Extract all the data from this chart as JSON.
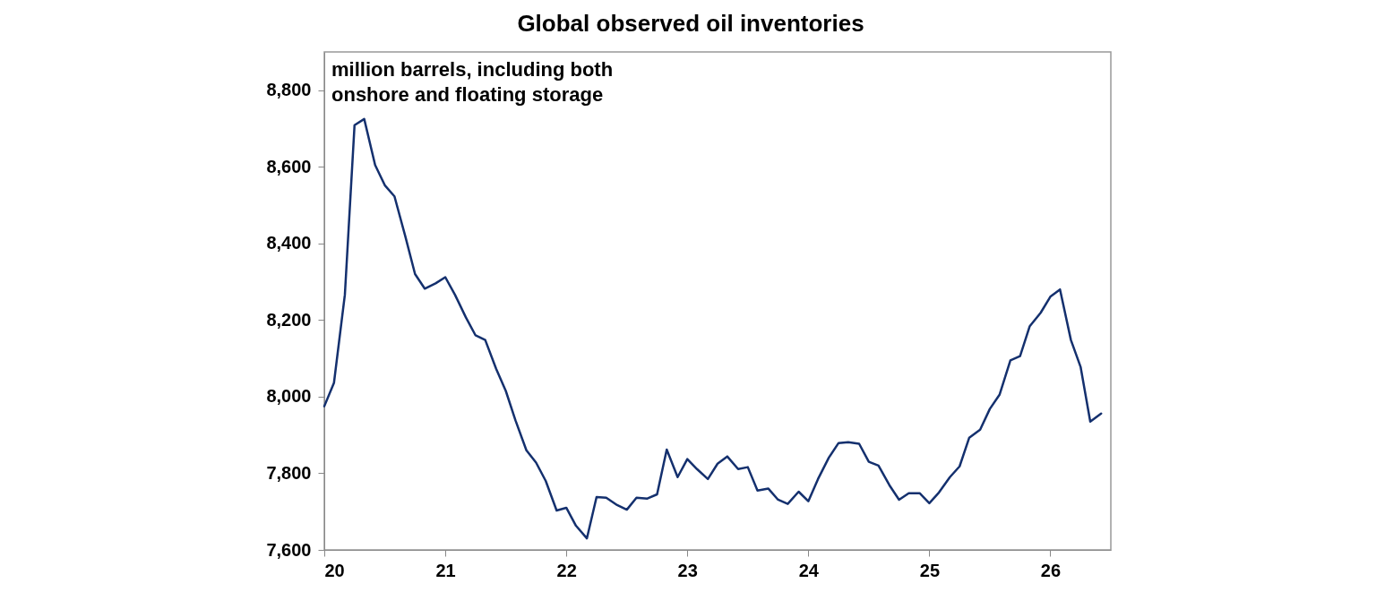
{
  "chart_data": {
    "type": "line",
    "title": "Global observed oil inventories",
    "annotations": [
      "million barrels, including both\nonshore and floating storage"
    ],
    "x": [
      20.0,
      20.08,
      20.17,
      20.25,
      20.33,
      20.42,
      20.5,
      20.58,
      20.67,
      20.75,
      20.83,
      20.92,
      21.0,
      21.08,
      21.17,
      21.25,
      21.33,
      21.42,
      21.5,
      21.58,
      21.67,
      21.75,
      21.83,
      21.92,
      22.0,
      22.08,
      22.17,
      22.25,
      22.33,
      22.42,
      22.5,
      22.58,
      22.67,
      22.75,
      22.83,
      22.92,
      23.0,
      23.08,
      23.17,
      23.25,
      23.33,
      23.42,
      23.5,
      23.58,
      23.67,
      23.75,
      23.83,
      23.92,
      24.0,
      24.08,
      24.17,
      24.25,
      24.33,
      24.42,
      24.5,
      24.58,
      24.67,
      24.75,
      24.83,
      24.92,
      25.0,
      25.08,
      25.17,
      25.25,
      25.33,
      25.42,
      25.5,
      25.58,
      25.67,
      25.75,
      25.83,
      25.92,
      26.0,
      26.08,
      26.17,
      26.25,
      26.33,
      26.42
    ],
    "series": [
      {
        "color": "#14306e",
        "values": [
          7975,
          8036,
          8266,
          8709,
          8725,
          8605,
          8552,
          8523,
          8418,
          8320,
          8282,
          8296,
          8312,
          8266,
          8207,
          8160,
          8148,
          8073,
          8015,
          7938,
          7860,
          7828,
          7780,
          7703,
          7710,
          7663,
          7630,
          7738,
          7736,
          7717,
          7705,
          7736,
          7734,
          7745,
          7862,
          7790,
          7837,
          7811,
          7785,
          7825,
          7844,
          7811,
          7816,
          7755,
          7760,
          7731,
          7720,
          7752,
          7727,
          7785,
          7841,
          7879,
          7881,
          7877,
          7830,
          7820,
          7769,
          7731,
          7748,
          7748,
          7722,
          7750,
          7790,
          7818,
          7893,
          7914,
          7968,
          8005,
          8095,
          8106,
          8184,
          8219,
          8261,
          8280,
          8148,
          8078,
          7935,
          7956
        ]
      }
    ],
    "xlim": [
      20,
      26.5
    ],
    "xticks": [
      20,
      21,
      22,
      23,
      24,
      25,
      26
    ],
    "ylim": [
      7600,
      8900
    ],
    "yticks": [
      {
        "value": 7600,
        "label": "7,600"
      },
      {
        "value": 7800,
        "label": "7,800"
      },
      {
        "value": 8000,
        "label": "8,000"
      },
      {
        "value": 8200,
        "label": "8,200"
      },
      {
        "value": 8400,
        "label": "8,400"
      },
      {
        "value": 8600,
        "label": "8,600"
      },
      {
        "value": 8800,
        "label": "8,800"
      }
    ],
    "grid": false,
    "legend": false,
    "marker": "none",
    "line_style": "solid"
  }
}
